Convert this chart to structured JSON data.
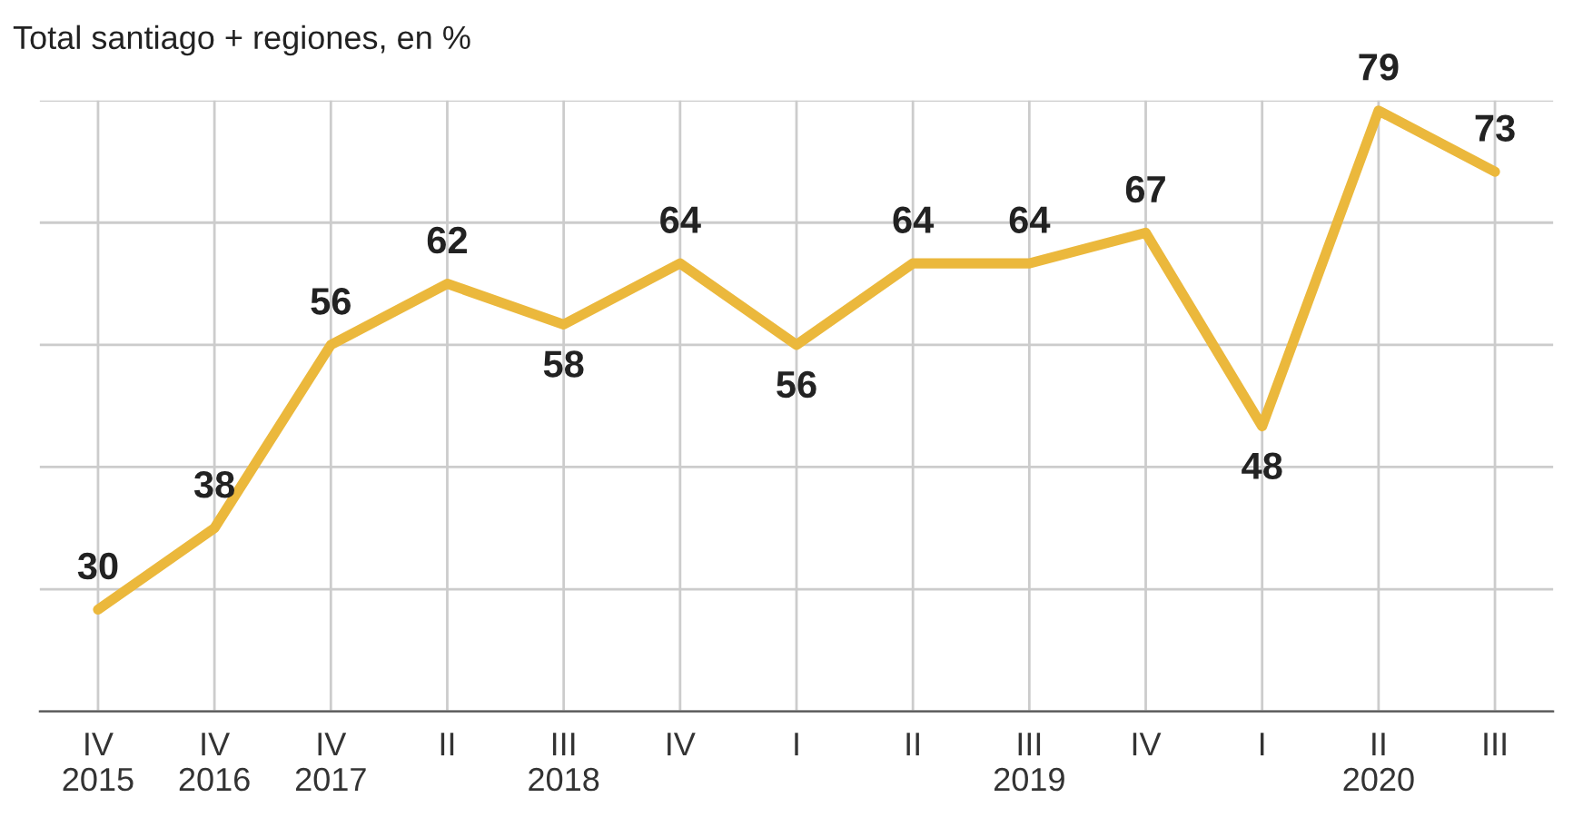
{
  "chart_data": {
    "type": "line",
    "title": "Total santiago + regiones, en %",
    "categories": [
      "IV\n2015",
      "IV\n2016",
      "IV\n2017",
      "II",
      "III\n2018",
      "IV",
      "I",
      "II",
      "III\n2019",
      "IV",
      "I",
      "II\n2020",
      "III"
    ],
    "series": [
      {
        "color": "#ebb83c",
        "values": [
          30,
          38,
          56,
          62,
          58,
          64,
          56,
          64,
          64,
          67,
          48,
          79,
          73
        ]
      }
    ],
    "ylim": [
      20,
      80
    ],
    "yticks": [
      {
        "value": 20,
        "label": null
      },
      {
        "value": 32,
        "label": null
      },
      {
        "value": 44,
        "label": null
      },
      {
        "value": 56,
        "label": null
      },
      {
        "value": 68,
        "label": null
      },
      {
        "value": 80,
        "label": null
      }
    ],
    "grid": true,
    "data_labels": true,
    "marker": "none",
    "line_style": "solid"
  }
}
